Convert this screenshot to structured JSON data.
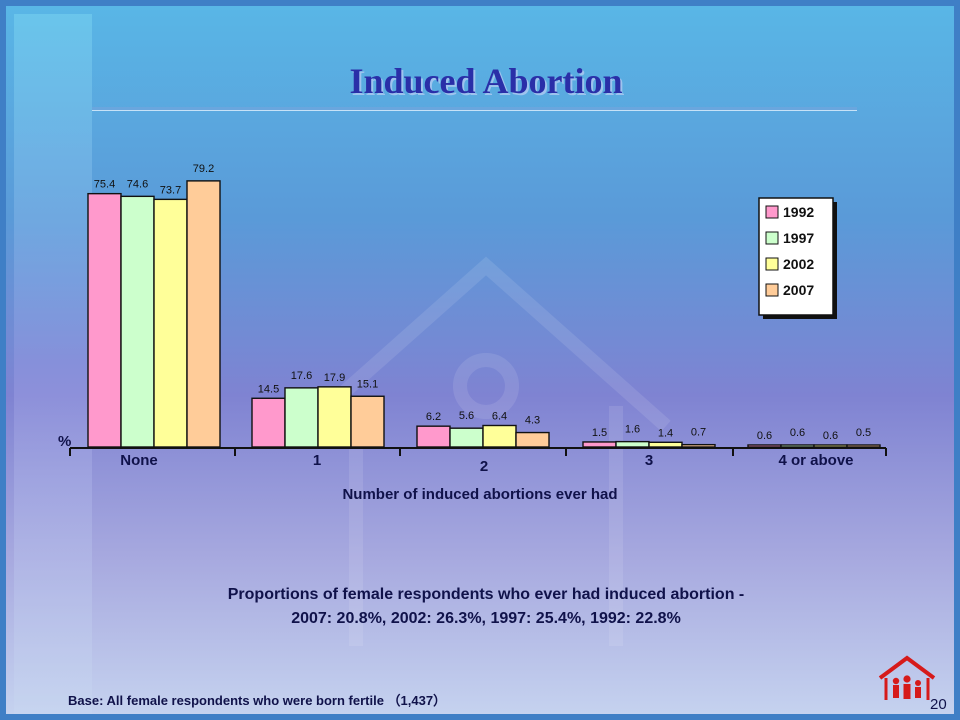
{
  "slide": {
    "title": "Induced Abortion",
    "subtitle_line1": "Proportions of female respondents who ever had induced abortion -",
    "subtitle_line2": "2007: 20.8%, 2002: 26.3%, 1997: 25.4%, 1992: 22.8%",
    "base_note": "Base: All female respondents who were born fertile （1,437）",
    "page_number": "20"
  },
  "colors": {
    "1992": "#ff99cc",
    "1997": "#ccffcc",
    "2002": "#ffff99",
    "2007": "#ffcc99"
  },
  "chart_data": {
    "type": "bar",
    "xlabel": "Number of induced abortions ever had",
    "ylabel": "%",
    "ylim": [
      0,
      100
    ],
    "categories": [
      "None",
      "1",
      "2",
      "3",
      "4 or above"
    ],
    "series": [
      {
        "name": "1992",
        "values": [
          75.4,
          14.5,
          6.2,
          1.5,
          0.6
        ]
      },
      {
        "name": "1997",
        "values": [
          74.6,
          17.6,
          5.6,
          1.6,
          0.6
        ]
      },
      {
        "name": "2002",
        "values": [
          73.7,
          17.9,
          6.4,
          1.4,
          0.6
        ]
      },
      {
        "name": "2007",
        "values": [
          79.2,
          15.1,
          4.3,
          0.7,
          0.5
        ]
      }
    ],
    "legend_position": "top-right",
    "grid": false
  }
}
